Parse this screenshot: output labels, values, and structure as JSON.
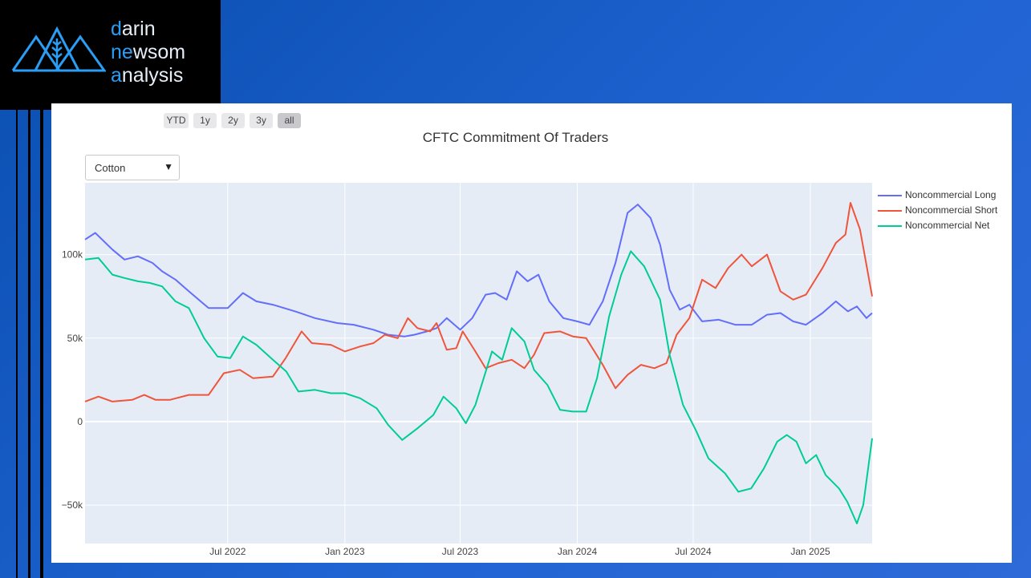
{
  "logo": {
    "word1_accent": "d",
    "word1_rest": "arin",
    "word2_accent": "ne",
    "word2_mid": "w",
    "word2_rest": "som",
    "word3_accent": "a",
    "word3_rest": "nalysis"
  },
  "range_selector": [
    "YTD",
    "1y",
    "2y",
    "3y",
    "all"
  ],
  "range_selector_active": "all",
  "dropdown": {
    "selected": "Cotton"
  },
  "chart_data": {
    "type": "line",
    "title": "CFTC Commitment Of Traders",
    "x_range": [
      "2021-11-19",
      "2025-04-08"
    ],
    "y_range": [
      -73000,
      143000
    ],
    "x_ticks": [
      {
        "date": "2022-07-01",
        "label": "Jul 2022"
      },
      {
        "date": "2023-01-01",
        "label": "Jan 2023"
      },
      {
        "date": "2023-07-01",
        "label": "Jul 2023"
      },
      {
        "date": "2024-01-01",
        "label": "Jan 2024"
      },
      {
        "date": "2024-07-01",
        "label": "Jul 2024"
      },
      {
        "date": "2025-01-01",
        "label": "Jan 2025"
      }
    ],
    "y_ticks": [
      {
        "value": -50000,
        "label": "−50k"
      },
      {
        "value": 0,
        "label": "0"
      },
      {
        "value": 50000,
        "label": "50k"
      },
      {
        "value": 100000,
        "label": "100k"
      }
    ],
    "legend_position": "top-right",
    "series": [
      {
        "name": "Noncommercial Long",
        "color": "#636efa",
        "points": [
          [
            "2021-11-19",
            109000
          ],
          [
            "2021-12-05",
            113000
          ],
          [
            "2022-01-01",
            103000
          ],
          [
            "2022-01-20",
            97000
          ],
          [
            "2022-02-10",
            99000
          ],
          [
            "2022-03-05",
            95000
          ],
          [
            "2022-03-20",
            90000
          ],
          [
            "2022-04-10",
            85000
          ],
          [
            "2022-05-01",
            78000
          ],
          [
            "2022-06-01",
            68000
          ],
          [
            "2022-07-01",
            68000
          ],
          [
            "2022-07-25",
            77000
          ],
          [
            "2022-08-15",
            72000
          ],
          [
            "2022-09-10",
            70000
          ],
          [
            "2022-10-15",
            66000
          ],
          [
            "2022-11-15",
            62000
          ],
          [
            "2022-12-20",
            59000
          ],
          [
            "2023-01-15",
            58000
          ],
          [
            "2023-02-15",
            55000
          ],
          [
            "2023-03-10",
            52000
          ],
          [
            "2023-04-05",
            51000
          ],
          [
            "2023-04-20",
            52000
          ],
          [
            "2023-05-10",
            54000
          ],
          [
            "2023-05-25",
            56000
          ],
          [
            "2023-06-10",
            62000
          ],
          [
            "2023-07-01",
            55000
          ],
          [
            "2023-07-20",
            62000
          ],
          [
            "2023-08-10",
            76000
          ],
          [
            "2023-08-25",
            77000
          ],
          [
            "2023-09-12",
            73000
          ],
          [
            "2023-09-28",
            90000
          ],
          [
            "2023-10-15",
            84000
          ],
          [
            "2023-11-01",
            88000
          ],
          [
            "2023-11-18",
            72000
          ],
          [
            "2023-12-10",
            62000
          ],
          [
            "2024-01-01",
            60000
          ],
          [
            "2024-01-20",
            58000
          ],
          [
            "2024-02-10",
            72000
          ],
          [
            "2024-03-01",
            95000
          ],
          [
            "2024-03-20",
            125000
          ],
          [
            "2024-04-05",
            130000
          ],
          [
            "2024-04-25",
            122000
          ],
          [
            "2024-05-10",
            106000
          ],
          [
            "2024-05-25",
            79000
          ],
          [
            "2024-06-10",
            67000
          ],
          [
            "2024-06-25",
            70000
          ],
          [
            "2024-07-15",
            60000
          ],
          [
            "2024-08-10",
            61000
          ],
          [
            "2024-09-05",
            58000
          ],
          [
            "2024-10-01",
            58000
          ],
          [
            "2024-10-25",
            64000
          ],
          [
            "2024-11-15",
            65000
          ],
          [
            "2024-12-05",
            60000
          ],
          [
            "2024-12-25",
            58000
          ],
          [
            "2025-01-20",
            65000
          ],
          [
            "2025-02-10",
            72000
          ],
          [
            "2025-03-01",
            66000
          ],
          [
            "2025-03-15",
            69000
          ],
          [
            "2025-03-30",
            62000
          ],
          [
            "2025-04-08",
            65000
          ]
        ]
      },
      {
        "name": "Noncommercial Short",
        "color": "#ef553b",
        "points": [
          [
            "2021-11-19",
            12000
          ],
          [
            "2021-12-10",
            15000
          ],
          [
            "2022-01-01",
            12000
          ],
          [
            "2022-02-01",
            13000
          ],
          [
            "2022-02-20",
            16000
          ],
          [
            "2022-03-10",
            13000
          ],
          [
            "2022-04-01",
            13000
          ],
          [
            "2022-05-01",
            16000
          ],
          [
            "2022-06-01",
            16000
          ],
          [
            "2022-06-25",
            29000
          ],
          [
            "2022-07-20",
            31000
          ],
          [
            "2022-08-10",
            26000
          ],
          [
            "2022-09-10",
            27000
          ],
          [
            "2022-09-30",
            38000
          ],
          [
            "2022-10-25",
            54000
          ],
          [
            "2022-11-10",
            47000
          ],
          [
            "2022-12-10",
            46000
          ],
          [
            "2023-01-01",
            42000
          ],
          [
            "2023-01-25",
            45000
          ],
          [
            "2023-02-15",
            47000
          ],
          [
            "2023-03-05",
            52000
          ],
          [
            "2023-03-25",
            50000
          ],
          [
            "2023-04-10",
            62000
          ],
          [
            "2023-04-25",
            56000
          ],
          [
            "2023-05-15",
            54000
          ],
          [
            "2023-05-25",
            59000
          ],
          [
            "2023-06-10",
            43000
          ],
          [
            "2023-06-25",
            44000
          ],
          [
            "2023-07-05",
            54000
          ],
          [
            "2023-07-25",
            42000
          ],
          [
            "2023-08-10",
            32000
          ],
          [
            "2023-08-30",
            35000
          ],
          [
            "2023-09-20",
            37000
          ],
          [
            "2023-10-10",
            32000
          ],
          [
            "2023-10-25",
            40000
          ],
          [
            "2023-11-10",
            53000
          ],
          [
            "2023-12-05",
            54000
          ],
          [
            "2023-12-25",
            51000
          ],
          [
            "2024-01-15",
            50000
          ],
          [
            "2024-02-10",
            34000
          ],
          [
            "2024-03-01",
            20000
          ],
          [
            "2024-03-20",
            28000
          ],
          [
            "2024-04-10",
            34000
          ],
          [
            "2024-05-01",
            32000
          ],
          [
            "2024-05-20",
            35000
          ],
          [
            "2024-06-05",
            52000
          ],
          [
            "2024-06-25",
            62000
          ],
          [
            "2024-07-15",
            85000
          ],
          [
            "2024-08-05",
            80000
          ],
          [
            "2024-08-25",
            92000
          ],
          [
            "2024-09-15",
            100000
          ],
          [
            "2024-10-01",
            93000
          ],
          [
            "2024-10-25",
            100000
          ],
          [
            "2024-11-15",
            78000
          ],
          [
            "2024-12-05",
            73000
          ],
          [
            "2024-12-25",
            76000
          ],
          [
            "2025-01-20",
            92000
          ],
          [
            "2025-02-10",
            107000
          ],
          [
            "2025-02-25",
            112000
          ],
          [
            "2025-03-05",
            131000
          ],
          [
            "2025-03-20",
            115000
          ],
          [
            "2025-04-08",
            75000
          ]
        ]
      },
      {
        "name": "Noncommercial Net",
        "color": "#00cc96",
        "points": [
          [
            "2021-11-19",
            97000
          ],
          [
            "2021-12-10",
            98000
          ],
          [
            "2022-01-01",
            88000
          ],
          [
            "2022-01-20",
            86000
          ],
          [
            "2022-02-10",
            84000
          ],
          [
            "2022-03-01",
            83000
          ],
          [
            "2022-03-20",
            81000
          ],
          [
            "2022-04-10",
            72000
          ],
          [
            "2022-05-01",
            68000
          ],
          [
            "2022-05-25",
            50000
          ],
          [
            "2022-06-15",
            39000
          ],
          [
            "2022-07-05",
            38000
          ],
          [
            "2022-07-25",
            51000
          ],
          [
            "2022-08-15",
            46000
          ],
          [
            "2022-09-10",
            37000
          ],
          [
            "2022-10-01",
            30000
          ],
          [
            "2022-10-20",
            18000
          ],
          [
            "2022-11-15",
            19000
          ],
          [
            "2022-12-10",
            17000
          ],
          [
            "2023-01-01",
            17000
          ],
          [
            "2023-01-25",
            14000
          ],
          [
            "2023-02-20",
            8000
          ],
          [
            "2023-03-10",
            -2000
          ],
          [
            "2023-04-01",
            -11000
          ],
          [
            "2023-04-25",
            -4000
          ],
          [
            "2023-05-20",
            4000
          ],
          [
            "2023-06-05",
            15000
          ],
          [
            "2023-06-25",
            8000
          ],
          [
            "2023-07-10",
            -1000
          ],
          [
            "2023-07-25",
            10000
          ],
          [
            "2023-08-20",
            42000
          ],
          [
            "2023-09-05",
            37000
          ],
          [
            "2023-09-20",
            56000
          ],
          [
            "2023-10-10",
            48000
          ],
          [
            "2023-10-25",
            31000
          ],
          [
            "2023-11-15",
            22000
          ],
          [
            "2023-12-05",
            7000
          ],
          [
            "2023-12-25",
            6000
          ],
          [
            "2024-01-15",
            6000
          ],
          [
            "2024-02-01",
            26000
          ],
          [
            "2024-02-20",
            63000
          ],
          [
            "2024-03-10",
            88000
          ],
          [
            "2024-03-25",
            102000
          ],
          [
            "2024-04-15",
            93000
          ],
          [
            "2024-05-10",
            73000
          ],
          [
            "2024-05-25",
            40000
          ],
          [
            "2024-06-15",
            10000
          ],
          [
            "2024-07-05",
            -5000
          ],
          [
            "2024-07-25",
            -22000
          ],
          [
            "2024-08-20",
            -31000
          ],
          [
            "2024-09-10",
            -42000
          ],
          [
            "2024-09-30",
            -40000
          ],
          [
            "2024-10-20",
            -28000
          ],
          [
            "2024-11-10",
            -12000
          ],
          [
            "2024-11-25",
            -8000
          ],
          [
            "2024-12-10",
            -12000
          ],
          [
            "2024-12-25",
            -25000
          ],
          [
            "2025-01-10",
            -20000
          ],
          [
            "2025-01-25",
            -32000
          ],
          [
            "2025-02-15",
            -40000
          ],
          [
            "2025-02-28",
            -48000
          ],
          [
            "2025-03-15",
            -61000
          ],
          [
            "2025-03-25",
            -50000
          ],
          [
            "2025-04-08",
            -10000
          ]
        ]
      }
    ]
  }
}
